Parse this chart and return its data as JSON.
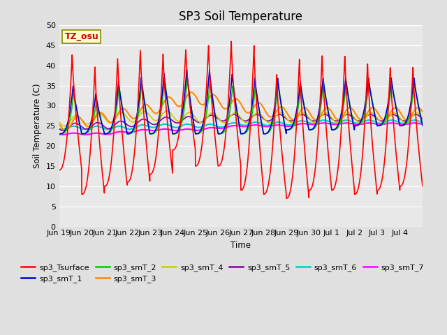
{
  "title": "SP3 Soil Temperature",
  "xlabel": "Time",
  "ylabel": "Soil Temperature (C)",
  "ylim": [
    0,
    50
  ],
  "yticks": [
    0,
    5,
    10,
    15,
    20,
    25,
    30,
    35,
    40,
    45,
    50
  ],
  "tz_label": "TZ_osu",
  "background_color": "#e0e0e0",
  "plot_bg_color": "#e8e8e8",
  "series_colors": {
    "sp3_Tsurface": "#ff0000",
    "sp3_smT_1": "#0000cc",
    "sp3_smT_2": "#00cc00",
    "sp3_smT_3": "#ff8800",
    "sp3_smT_4": "#cccc00",
    "sp3_smT_5": "#8800aa",
    "sp3_smT_6": "#00cccc",
    "sp3_smT_7": "#ff00ff"
  },
  "legend_order": [
    "sp3_Tsurface",
    "sp3_smT_1",
    "sp3_smT_2",
    "sp3_smT_3",
    "sp3_smT_4",
    "sp3_smT_5",
    "sp3_smT_6",
    "sp3_smT_7"
  ],
  "x_tick_labels": [
    "Jun 19",
    "Jun 20",
    "Jun 21",
    "Jun 22",
    "Jun 23",
    "Jun 24",
    "Jun 25",
    "Jun 26",
    "Jun 27",
    "Jun 28",
    "Jun 29",
    "Jun 30",
    "Jul 1",
    "Jul 2",
    "Jul 3",
    "Jul 4"
  ],
  "num_days": 16,
  "title_fontsize": 12,
  "surface_day_peaks": [
    43,
    40,
    42,
    44,
    43,
    44,
    45,
    46,
    45,
    38,
    42,
    43,
    43,
    41,
    40
  ],
  "surface_night_mins": [
    14,
    8,
    10,
    11,
    13,
    19,
    15,
    15,
    9,
    8,
    7,
    9,
    9,
    8,
    9,
    10
  ],
  "smT1_day_peaks": [
    35,
    33,
    36,
    37,
    38,
    39,
    39,
    38,
    37,
    37,
    36,
    37,
    37,
    37,
    37
  ],
  "smT1_night_mins": [
    23,
    23,
    23,
    23,
    23,
    23,
    23,
    23,
    23,
    23,
    24,
    24,
    24,
    25,
    25
  ],
  "smT2_day_peaks": [
    33,
    31,
    35,
    36,
    37,
    37,
    36,
    35,
    35,
    36,
    35,
    36,
    36,
    36,
    36
  ],
  "smT2_night_mins": [
    23,
    23,
    23,
    23,
    23,
    23,
    23,
    23,
    23,
    23,
    24,
    24,
    24,
    25,
    25
  ],
  "smT3_slow_base": [
    25,
    26,
    27,
    28,
    29,
    31,
    32,
    31,
    30,
    29,
    28,
    28,
    28,
    28,
    28,
    28
  ],
  "smT4_base": [
    26,
    26.5,
    27,
    27,
    27.5,
    27.5,
    27,
    27,
    27,
    27,
    27,
    27,
    27,
    27,
    27,
    27
  ],
  "smT5_base": [
    24.5,
    25,
    25,
    25.5,
    26,
    26.5,
    26.5,
    27,
    27,
    27,
    27,
    27,
    27,
    27,
    27,
    27
  ],
  "smT6_base": [
    24.5,
    24.5,
    24.5,
    24.5,
    25,
    25,
    25,
    25,
    25.5,
    25.5,
    25.5,
    26,
    26,
    26,
    26,
    26
  ],
  "smT7_base": [
    23,
    23,
    23,
    23.5,
    24,
    24,
    24,
    24.5,
    25,
    25,
    25,
    25.5,
    25.5,
    25.5,
    25.5,
    25.5
  ]
}
